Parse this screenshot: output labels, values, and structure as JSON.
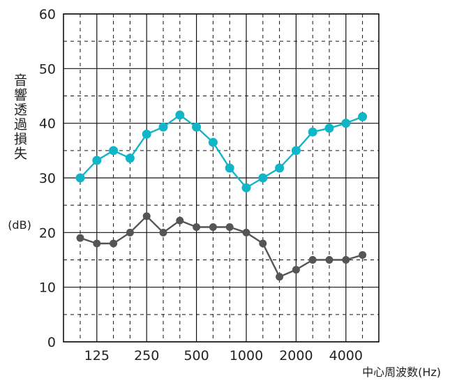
{
  "chart_data": {
    "type": "line",
    "xlabel": "中心周波数(Hz)",
    "ylabel": "音響透過損失",
    "yunit": "(dB)",
    "ylim": [
      0,
      60
    ],
    "yticks": [
      0,
      10,
      20,
      30,
      40,
      50,
      60
    ],
    "x": [
      "100",
      "125",
      "160",
      "200",
      "250",
      "315",
      "400",
      "500",
      "630",
      "800",
      "1000",
      "1250",
      "1600",
      "2000",
      "2500",
      "3150",
      "4000",
      "5000"
    ],
    "xtick_labels": [
      "125",
      "250",
      "500",
      "1000",
      "2000",
      "4000"
    ],
    "grid": true,
    "series": [
      {
        "color": "#10b6c8",
        "values": [
          30,
          33.2,
          35,
          33.6,
          38,
          39.3,
          41.5,
          39.3,
          36.5,
          31.8,
          28.2,
          30,
          31.8,
          35,
          38.4,
          39.1,
          40,
          41.2
        ]
      },
      {
        "color": "#555555",
        "values": [
          19,
          18,
          18,
          20,
          23,
          20,
          22.2,
          21,
          21,
          21,
          20,
          18,
          11.9,
          13.2,
          15,
          15,
          15,
          15.9
        ]
      }
    ]
  }
}
